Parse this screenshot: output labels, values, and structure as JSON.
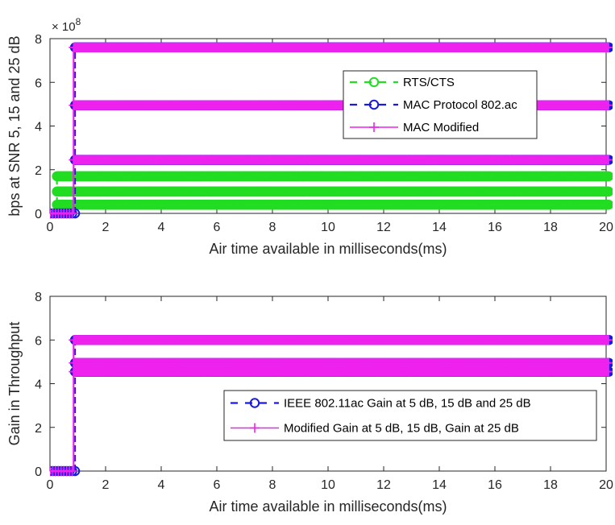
{
  "chart_data": [
    {
      "type": "line",
      "xlabel": "Air time available in milliseconds(ms)",
      "ylabel": "bps at SNR 5, 15 and 25 dB",
      "y_exponent_label": "× 10^8",
      "y_exponent_base": "× 10",
      "y_exponent_power": "8",
      "xlim": [
        0,
        20
      ],
      "ylim": [
        0,
        8
      ],
      "x_ticks": [
        "0",
        "2",
        "4",
        "6",
        "8",
        "10",
        "12",
        "14",
        "16",
        "18",
        "20"
      ],
      "y_ticks": [
        "0",
        "2",
        "4",
        "6",
        "8"
      ],
      "step_x": 0.85,
      "legend_position": "upper-right",
      "grid": false,
      "series": [
        {
          "name": "RTS/CTS",
          "color": "#22dd22",
          "marker": "circle",
          "style": "dashed",
          "levels": [
            0.4,
            1.0,
            1.7
          ],
          "step_at": 0.25
        },
        {
          "name": "MAC Protocol 802.ac",
          "color": "#1a1adb",
          "marker": "circle",
          "style": "dashed",
          "levels": [
            2.45,
            4.95,
            7.6
          ],
          "step_at": 0.9
        },
        {
          "name": "MAC Modified",
          "color": "#ee22ee",
          "marker": "plus",
          "style": "solid",
          "levels": [
            2.45,
            4.95,
            7.6
          ],
          "step_at": 0.85
        }
      ]
    },
    {
      "type": "line",
      "xlabel": "Air time available in milliseconds(ms)",
      "ylabel": "Gain in Throughput",
      "xlim": [
        0,
        20
      ],
      "ylim": [
        0,
        8
      ],
      "x_ticks": [
        "0",
        "2",
        "4",
        "6",
        "8",
        "10",
        "12",
        "14",
        "16",
        "18",
        "20"
      ],
      "y_ticks": [
        "0",
        "2",
        "4",
        "6",
        "8"
      ],
      "legend_position": "lower-right",
      "grid": false,
      "series": [
        {
          "name": "IEEE 802.11ac Gain at 5 dB, 15 dB and 25 dB",
          "color": "#1a1adb",
          "marker": "circle",
          "style": "dashed",
          "levels": [
            4.55,
            4.95,
            6.0
          ],
          "step_at": 0.9
        },
        {
          "name": "Modified Gain at 5 dB, 15 dB, Gain at 25 dB",
          "color": "#ee22ee",
          "marker": "plus",
          "style": "solid",
          "levels": [
            4.55,
            4.95,
            6.0
          ],
          "step_at": 0.85
        }
      ]
    }
  ]
}
